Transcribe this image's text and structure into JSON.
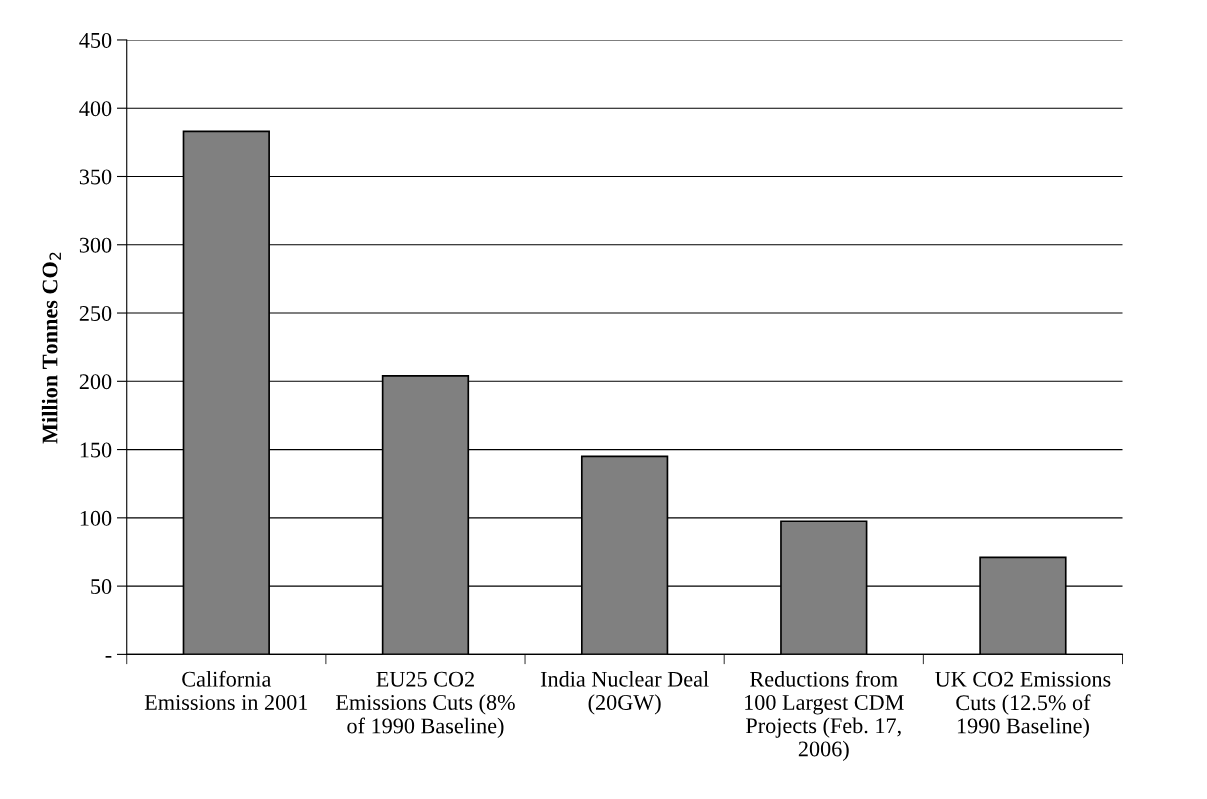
{
  "chart_data": {
    "type": "bar",
    "ylabel": "Million Tonnes CO$_{2}$",
    "categories": [
      "California\nEmissions in 2001",
      "EU25 CO2\nEmissions Cuts (8%\nof 1990 Baseline)",
      "India Nuclear Deal\n(20GW)",
      "Reductions from\n100 Largest CDM\nProjects (Feb. 17,\n2006)",
      "UK CO2 Emissions\nCuts (12.5% of\n1990 Baseline)"
    ],
    "values": [
      383,
      204,
      145,
      97.5,
      71
    ],
    "color": "#808080",
    "ylim": [
      0,
      450
    ],
    "yticks": [
      {
        "value": 0,
        "label": "-"
      },
      50,
      100,
      150,
      200,
      250,
      300,
      350,
      400,
      450
    ],
    "grid": "y",
    "legend": false
  }
}
